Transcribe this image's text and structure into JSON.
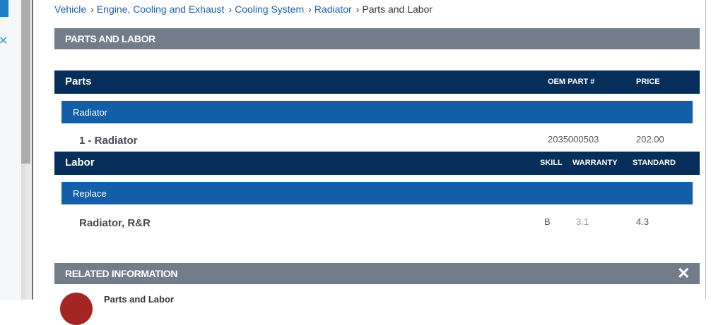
{
  "breadcrumb": [
    {
      "label": "Vehicle"
    },
    {
      "label": "Engine, Cooling and Exhaust"
    },
    {
      "label": "Cooling System"
    },
    {
      "label": "Radiator"
    }
  ],
  "breadcrumb_current": "Parts and Labor",
  "section_title": "PARTS AND LABOR",
  "parts": {
    "title": "Parts",
    "col_oem": "OEM PART #",
    "col_price": "PRICE",
    "group": "Radiator",
    "item": {
      "name": "1 - Radiator",
      "oem": "2035000503",
      "price": "202.00"
    }
  },
  "labor": {
    "title": "Labor",
    "col_skill": "SKILL",
    "col_warranty": "WARRANTY",
    "col_standard": "STANDARD",
    "group": "Replace",
    "item": {
      "name": "Radiator, R&R",
      "skill": "B",
      "warranty": "3.1",
      "standard": "4.3"
    }
  },
  "related": {
    "title": "RELATED INFORMATION",
    "close_icon": "close-icon",
    "first_item": "Parts and Labor"
  },
  "colors": {
    "link": "#1f5fa8",
    "grey_bar": "#737d8a",
    "dark_bar": "#052f5a",
    "sub_bar": "#135ea8",
    "avatar": "#a52524"
  }
}
